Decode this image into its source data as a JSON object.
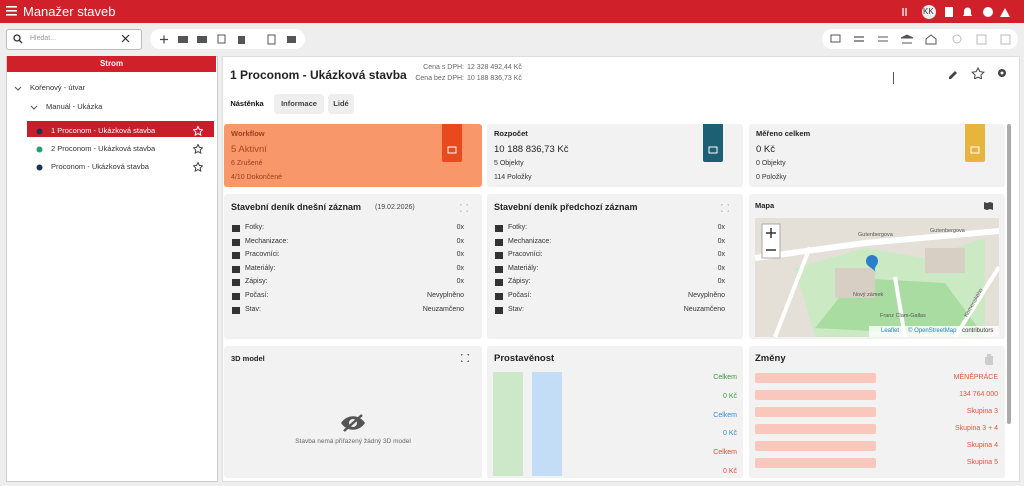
{
  "header": {
    "title": "Manažer staveb",
    "avatar": "KK"
  },
  "search": {
    "placeholder": "Hledat..."
  },
  "tree": {
    "title": "Strom",
    "items": [
      "Kořenový - útvar",
      "Manuál - Ukázka",
      "1 Proconom - Ukázková stavba",
      "2 Proconom - Ukázková stavba",
      "Proconom - Ukázková stavba"
    ]
  },
  "project": {
    "title": "1 Proconom - Ukázková stavba",
    "price_vat_label": "Cena s DPH:",
    "price_vat": "12 328 492,44 Kč",
    "price_novat_label": "Cena bez DPH:",
    "price_novat": "10 188 836,73 Kč"
  },
  "tabs": [
    "Nástěnka",
    "Informace",
    "Lidé"
  ],
  "cards": {
    "workflow": {
      "title": "Workflow",
      "lines": [
        "5 Aktivní",
        "6 Zrušené",
        "4/10 Dokončené"
      ]
    },
    "budget": {
      "title": "Rozpočet",
      "lines": [
        "10 188 836,73 Kč",
        "5 Objekty",
        "114 Položky"
      ]
    },
    "measured": {
      "title": "Měřeno celkem",
      "lines": [
        "0 Kč",
        "0 Objekty",
        "0 Položky"
      ]
    },
    "diary_today": {
      "title": "Stavební deník dnešní záznam",
      "date": "(19.02.2026)",
      "rows": [
        [
          "Fotky:",
          "0x"
        ],
        [
          "Mechanizace:",
          "0x"
        ],
        [
          "Pracovníci:",
          "0x"
        ],
        [
          "Materiály:",
          "0x"
        ],
        [
          "Zápisy:",
          "0x"
        ],
        [
          "Počasí:",
          "Nevyplněno"
        ],
        [
          "Stav:",
          "Neuzamčeno"
        ]
      ]
    },
    "diary_prev": {
      "title": "Stavební deník předchozí záznam",
      "rows": [
        [
          "Fotky:",
          "0x"
        ],
        [
          "Mechanizace:",
          "0x"
        ],
        [
          "Pracovníci:",
          "0x"
        ],
        [
          "Materiály:",
          "0x"
        ],
        [
          "Zápisy:",
          "0x"
        ],
        [
          "Počasí:",
          "Nevyplněno"
        ],
        [
          "Stav:",
          "Neuzamčeno"
        ]
      ]
    },
    "map": {
      "title": "Mapa",
      "labels": [
        "Gutenbergova",
        "Gutenbergova",
        "Nový zámek",
        "Franz Clam-Gallas",
        "Komenského"
      ],
      "attribution": [
        "Leaflet",
        "© OpenStreetMap",
        "contributors"
      ]
    },
    "model": {
      "title": "3D model",
      "message": "Stavba nemá přiřazený žádný 3D model"
    },
    "progress": {
      "title": "Prostavěnost",
      "labels": [
        "Celkem",
        "0 Kč",
        "Celkem",
        "0 Kč",
        "Celkem",
        "0 Kč"
      ]
    },
    "changes": {
      "title": "Změny",
      "items": [
        "MÉNĚPRÁCE",
        "134 764 000",
        "Skupina 3",
        "Skupina 3 + 4",
        "Skupina 4",
        "Skupina 5"
      ]
    }
  }
}
